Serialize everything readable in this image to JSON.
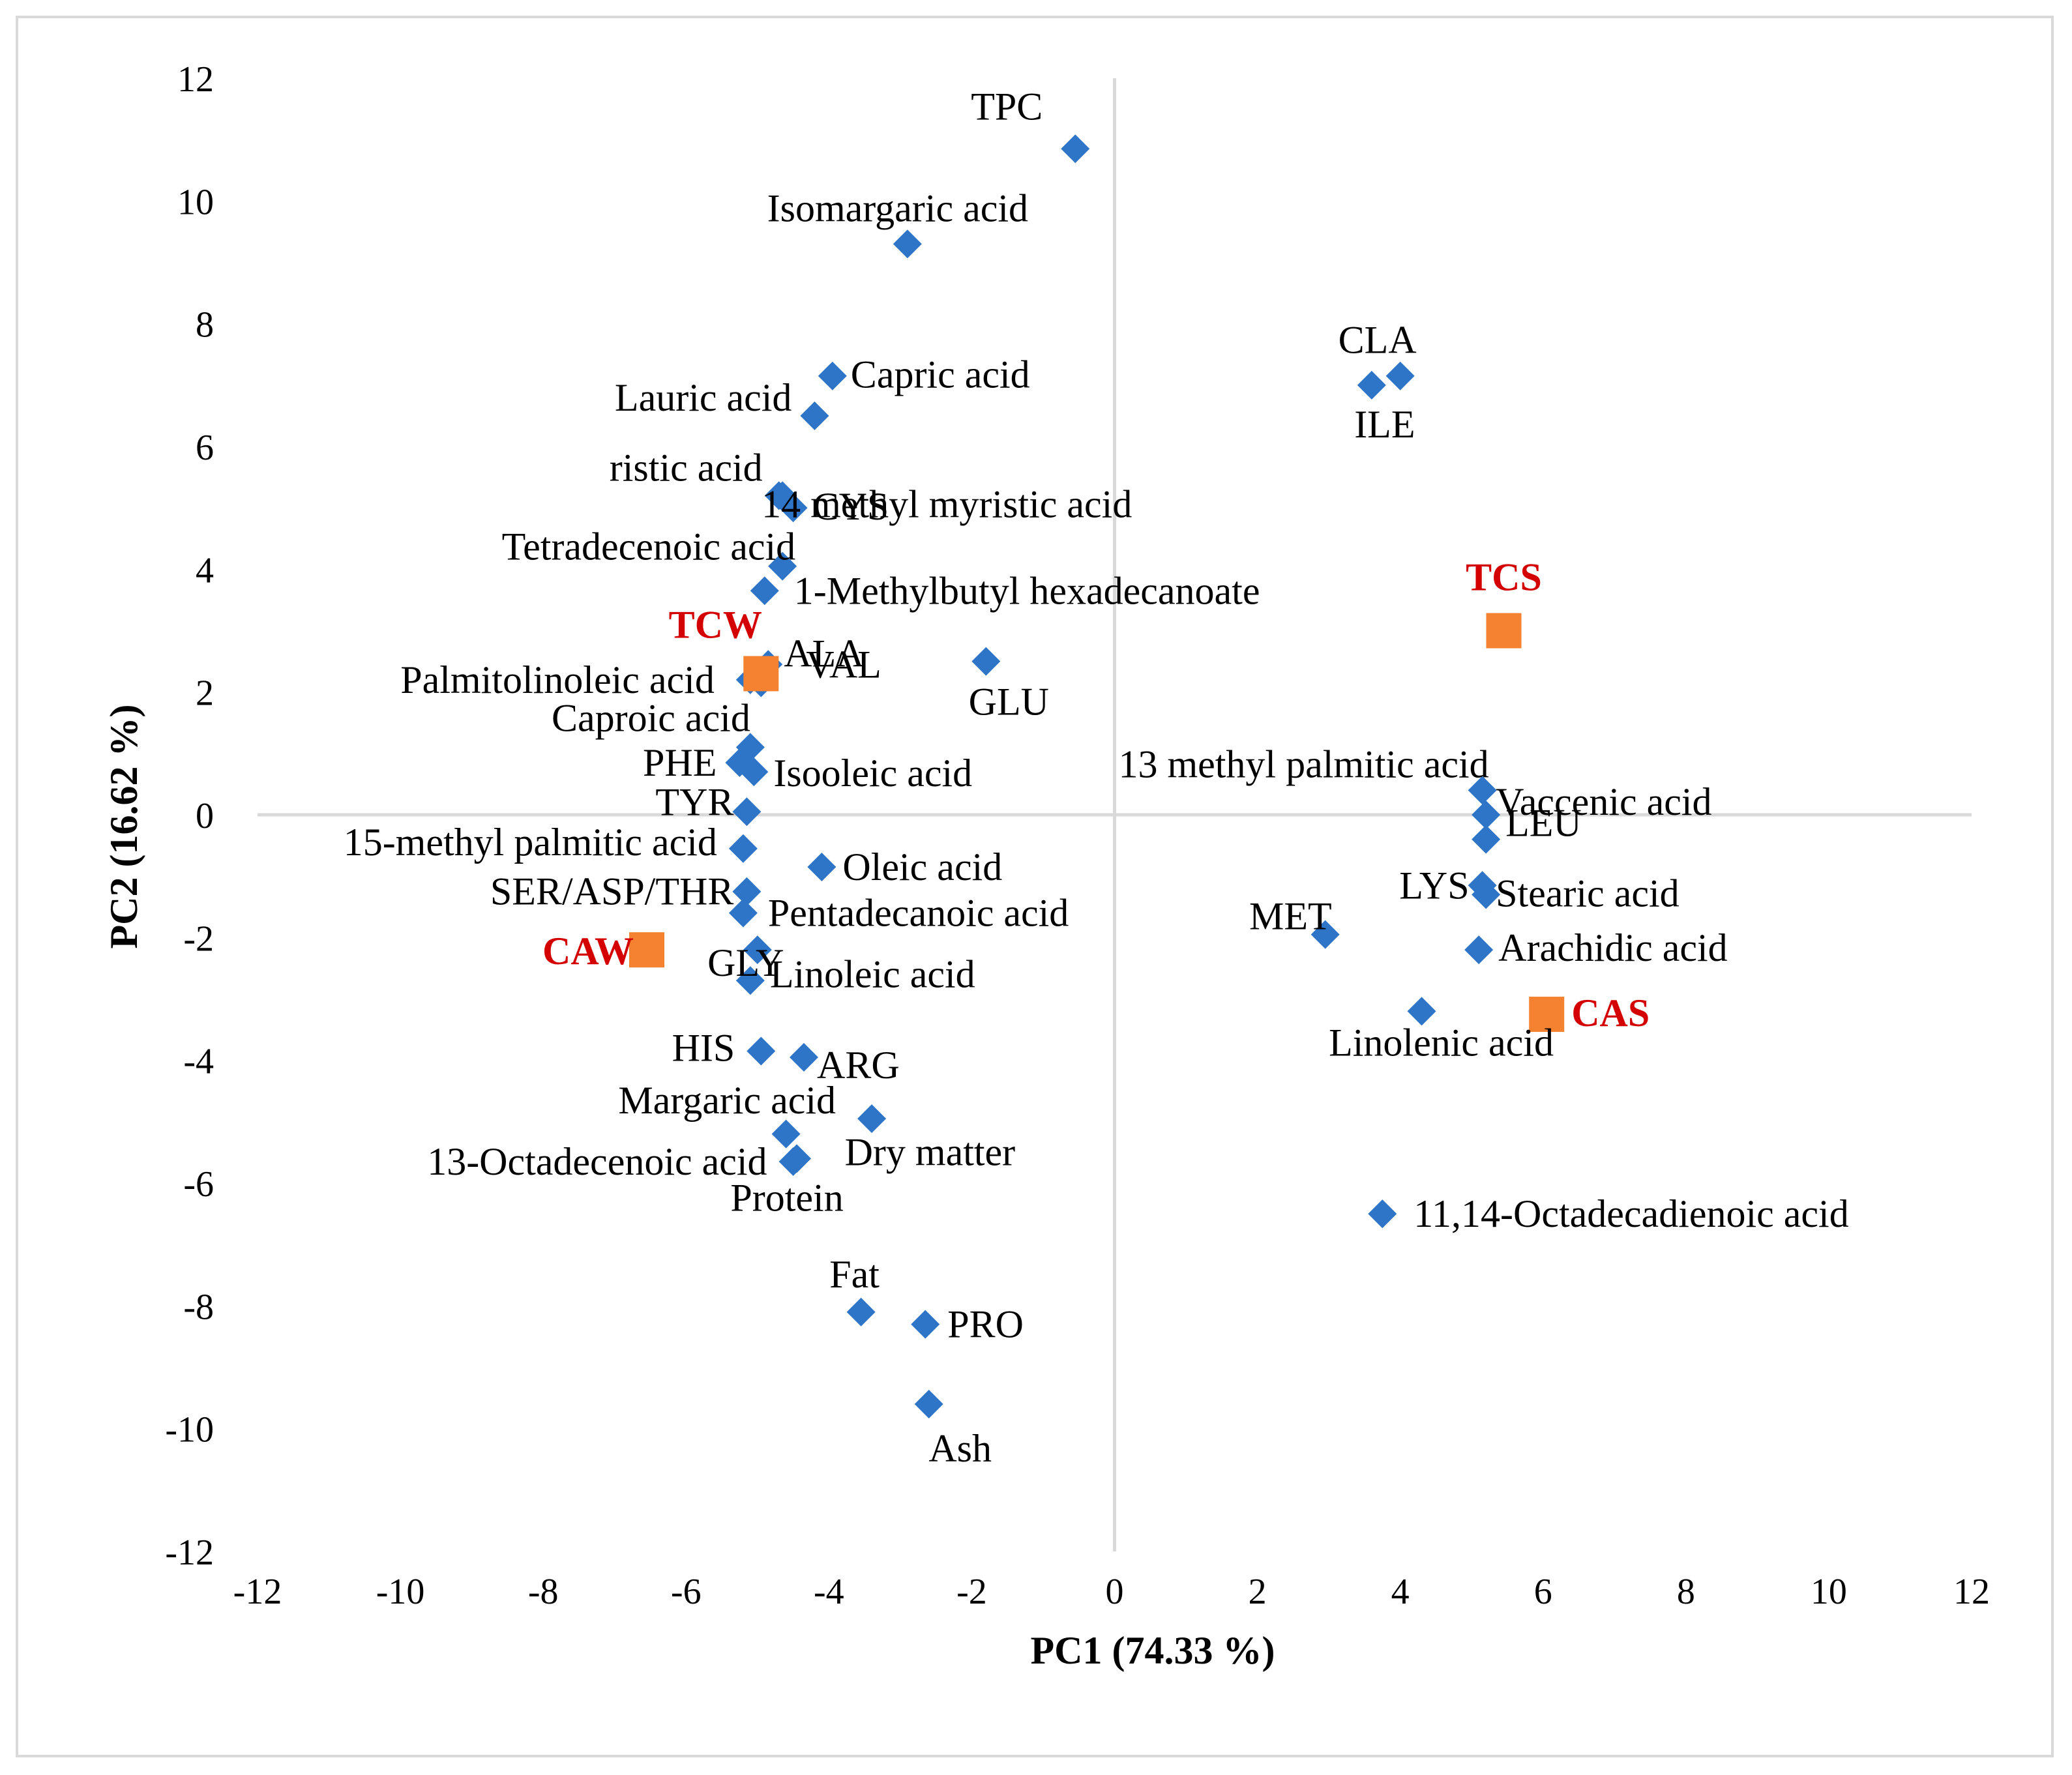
{
  "chart_data": {
    "type": "scatter",
    "title": "",
    "xlabel": "PC1 (74.33 %)",
    "ylabel": "PC2 (16.62 %)",
    "xlim": [
      -12,
      12
    ],
    "ylim": [
      -12,
      12
    ],
    "x_ticks": [
      -12,
      -10,
      -8,
      -6,
      -4,
      -2,
      0,
      2,
      4,
      6,
      8,
      10,
      12
    ],
    "y_ticks": [
      -12,
      -10,
      -8,
      -6,
      -4,
      -2,
      0,
      2,
      4,
      6,
      8,
      10,
      12
    ],
    "grid": false,
    "legend": "none",
    "colors": {
      "variables": "#2e75c7",
      "samples": "#f58231",
      "sample_labels": "#d40000",
      "axes": "#d9d9d9"
    },
    "series": [
      {
        "name": "variables",
        "marker": "diamond",
        "points": [
          {
            "label": "TPC",
            "x": -0.55,
            "y": 10.85
          },
          {
            "label": "Isomargaric acid",
            "x": -2.9,
            "y": 9.3
          },
          {
            "label": "Capric acid",
            "x": -3.95,
            "y": 7.15
          },
          {
            "label": "Lauric acid",
            "x": -4.2,
            "y": 6.5
          },
          {
            "label": "CLA",
            "x": 4.0,
            "y": 7.15
          },
          {
            "label": "ILE",
            "x": 3.6,
            "y": 7.0
          },
          {
            "label": "ristic acid",
            "x": -4.7,
            "y": 5.2
          },
          {
            "label": "14 methyl myristic acid",
            "x": -4.65,
            "y": 5.2
          },
          {
            "label": "CYS",
            "x": -4.5,
            "y": 5.0
          },
          {
            "label": "Tetradecenoic acid",
            "x": -4.65,
            "y": 4.05
          },
          {
            "label": "1-Methylbutyl hexadecanoate",
            "x": -4.9,
            "y": 3.65
          },
          {
            "label": "VAL",
            "x": -4.85,
            "y": 2.45
          },
          {
            "label": "GLU",
            "x": -1.8,
            "y": 2.5
          },
          {
            "label": "Palmitolinoleic acid",
            "x": -5.1,
            "y": 2.2
          },
          {
            "label": "Caproic acid",
            "x": -5.1,
            "y": 1.1
          },
          {
            "label": "ALA",
            "x": -4.95,
            "y": 2.15
          },
          {
            "label": "PHE",
            "x": -5.25,
            "y": 0.85
          },
          {
            "label": "Isooleic acid",
            "x": -5.05,
            "y": 0.7
          },
          {
            "label": "13 methyl palmitic acid",
            "x": 5.15,
            "y": 0.4
          },
          {
            "label": "Vaccenic acid",
            "x": 5.2,
            "y": 0.0
          },
          {
            "label": "TYR",
            "x": -5.15,
            "y": 0.05
          },
          {
            "label": "LEU",
            "x": 5.2,
            "y": -0.4
          },
          {
            "label": "15-methyl palmitic acid",
            "x": -5.2,
            "y": -0.55
          },
          {
            "label": "Oleic acid",
            "x": -4.1,
            "y": -0.85
          },
          {
            "label": "LYS",
            "x": 5.15,
            "y": -1.15
          },
          {
            "label": "Stearic acid",
            "x": 5.2,
            "y": -1.3
          },
          {
            "label": "SER/ASP/THR",
            "x": -5.15,
            "y": -1.25
          },
          {
            "label": "Pentadecanoic acid",
            "x": -5.2,
            "y": -1.6
          },
          {
            "label": "MET",
            "x": 2.95,
            "y": -1.95
          },
          {
            "label": "Arachidic acid",
            "x": 5.1,
            "y": -2.2
          },
          {
            "label": "GLY",
            "x": -5.0,
            "y": -2.2
          },
          {
            "label": "Linoleic acid",
            "x": -5.1,
            "y": -2.7
          },
          {
            "label": "Linolenic acid",
            "x": 4.3,
            "y": -3.2
          },
          {
            "label": "HIS",
            "x": -4.95,
            "y": -3.85
          },
          {
            "label": "ARG",
            "x": -4.35,
            "y": -3.95
          },
          {
            "label": "Margaric acid",
            "x": -3.4,
            "y": -4.95
          },
          {
            "label": "Dry matter",
            "x": -4.6,
            "y": -5.2
          },
          {
            "label": "13-Octadecenoic acid",
            "x": -4.5,
            "y": -5.65
          },
          {
            "label": "Protein",
            "x": -4.45,
            "y": -5.6
          },
          {
            "label": "11,14-Octadecadienoic acid",
            "x": 3.75,
            "y": -6.5
          },
          {
            "label": "Fat",
            "x": -3.55,
            "y": -8.1
          },
          {
            "label": "PRO",
            "x": -2.65,
            "y": -8.3
          },
          {
            "label": "Ash",
            "x": -2.6,
            "y": -9.6
          }
        ]
      },
      {
        "name": "samples",
        "marker": "square",
        "points": [
          {
            "label": "TCS",
            "x": 5.45,
            "y": 3.0
          },
          {
            "label": "TCW",
            "x": -4.95,
            "y": 2.3
          },
          {
            "label": "CAW",
            "x": -6.55,
            "y": -2.2
          },
          {
            "label": "CAS",
            "x": 6.05,
            "y": -3.25
          }
        ]
      }
    ]
  }
}
